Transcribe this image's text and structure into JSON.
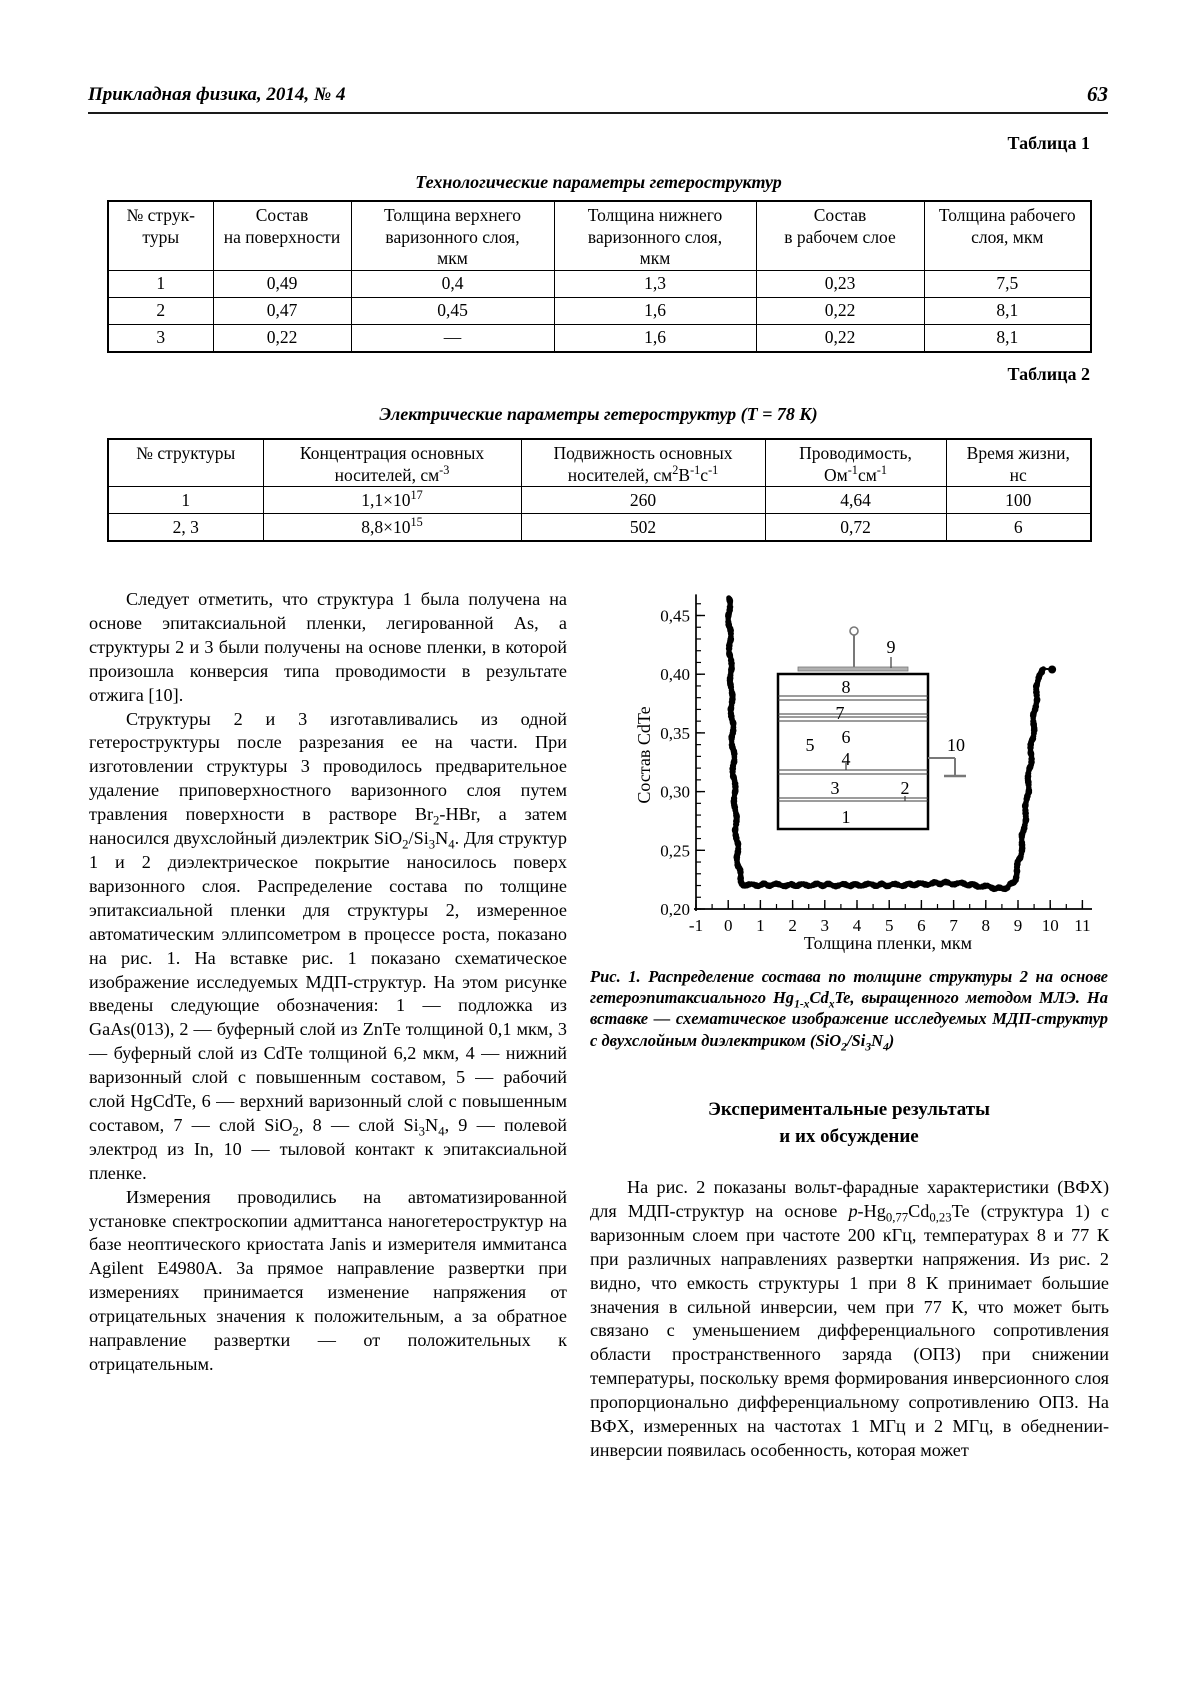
{
  "page": {
    "journal": "Прикладная физика, 2014, № 4",
    "page_number": "63"
  },
  "table1": {
    "label": "Таблица 1",
    "title": "Технологические параметры гетероструктур",
    "headers": [
      "№ струк-\nтуры",
      "Состав\nна поверхности",
      "Толщина верхнего\nваризонного слоя,\nмкм",
      "Толщина нижнего\nваризонного слоя,\nмкм",
      "Состав\nв рабочем слое",
      "Толщина рабочего\nслоя, мкм"
    ],
    "rows": [
      [
        "1",
        "0,49",
        "0,4",
        "1,3",
        "0,23",
        "7,5"
      ],
      [
        "2",
        "0,47",
        "0,45",
        "1,6",
        "0,22",
        "8,1"
      ],
      [
        "3",
        "0,22",
        "—",
        "1,6",
        "0,22",
        "8,1"
      ]
    ]
  },
  "table2": {
    "label": "Таблица 2",
    "title": "Электрические параметры гетероструктур (Т = 78 К)",
    "headers": [
      "№ структуры",
      "Концентрация основных\nносителей, см^{-3}",
      "Подвижность основных\nносителей, см^{2}В^{-1}с^{-1}",
      "Проводимость,\nОм^{-1}см^{-1}",
      "Время жизни,\nнс"
    ],
    "rows": [
      [
        "1",
        "1,1×10^{17}",
        "260",
        "4,64",
        "100"
      ],
      [
        "2, 3",
        "8,8×10^{15}",
        "502",
        "0,72",
        "6"
      ]
    ]
  },
  "left_column": {
    "paragraphs": [
      "Следует отметить, что структура 1 была получена на основе эпитаксиальной пленки, легированной As, а структуры 2 и 3 были получены на основе пленки, в которой произошла конверсия типа проводимости в результате отжига [10].",
      "Структуры 2 и 3 изготавливались из одной гетероструктуры после разрезания ее на части. При изготовлении структуры 3 проводилось предварительное удаление приповерхностного варизонного слоя путем травления поверхности в растворе Br_{2}-HBr, а затем наносился двухслойный диэлектрик SiO_{2}/Si_{3}N_{4}. Для структур 1 и 2 диэлектрическое покрытие наносилось поверх варизонного слоя. Распределение состава по толщине эпитаксиальной пленки для структуры 2, измеренное автоматическим эллипсометром в процессе роста, показано на рис. 1. На вставке рис. 1 показано схематическое изображение исследуемых МДП-структур. На этом рисунке введены следующие обозначения: 1 — подложка из GaAs(013), 2 — буферный слой из ZnTe толщиной 0,1 мкм, 3 — буферный слой из CdTe толщиной 6,2 мкм, 4 — нижний варизонный слой с повышенным составом, 5 — рабочий слой HgCdTe, 6 — верхний варизонный слой с повышенным составом, 7 — слой SiO_{2}, 8 — слой Si_{3}N_{4}, 9 — полевой электрод из In, 10 — тыловой контакт к эпитаксиальной пленке.",
      "Измерения проводились на автоматизированной установке спектроскопии адмиттанса наногетероструктур на базе неоптического криостата Janis и измерителя иммитанса Agilent E4980A. За прямое направление развертки при измерениях принимается изменение напряжения от отрицательных значения к положительным, а за обратное направление развертки — от положительных к отрицательным."
    ]
  },
  "figure": {
    "caption": "Рис. 1. Распределение состава по толщине структуры 2 на основе гетероэпитаксиального Hg_{1-x}Cd_{x}Te, выращенного методом МЛЭ. На вставке — схематическое изображение исследуемых МДП-структур с двухслойным диэлектриком (SiO_{2}/Si_{3}N_{4})"
  },
  "section": {
    "heading_line1": "Экспериментальные результаты",
    "heading_line2": "и их обсуждение"
  },
  "right_column": {
    "paragraphs": [
      "На рис. 2 показаны вольт-фарадные характеристики (ВФХ) для МДП-структур на основе /{p}/-Hg_{0,77}Cd_{0,23}Te (структура 1) с варизонным слоем при частоте 200 кГц, температурах 8 и 77 К при различных направлениях развертки напряжения. Из рис. 2 видно, что емкость структуры 1 при 8 К принимает большие значения в сильной инверсии, чем при 77 К, что может быть связано с уменьшением дифференциального сопротивления области пространственного заряда (ОПЗ) при снижении температуры, поскольку время формирования инверсионного слоя пропорционально дифференциальному сопротивлению ОПЗ. На ВФХ, измеренных на частотах 1 МГц и 2 МГц, в обеднении-инверсии появилась особенность, которая может"
    ]
  },
  "chart_data": {
    "type": "scatter",
    "title": "",
    "xlabel": "Толщина пленки, мкм",
    "ylabel": "Состав CdTe",
    "xlim": [
      -1,
      11
    ],
    "ylim": [
      0.2,
      0.468
    ],
    "grid": false,
    "legend": "none",
    "xticks": {
      "values": [
        -1,
        0,
        1,
        2,
        3,
        4,
        5,
        6,
        7,
        8,
        9,
        10,
        11
      ],
      "labels": [
        "-1",
        "0",
        "1",
        "2",
        "3",
        "4",
        "5",
        "6",
        "7",
        "8",
        "9",
        "10",
        "11"
      ],
      "minor_step": 0.5
    },
    "yticks": {
      "values": [
        0.2,
        0.25,
        0.3,
        0.35,
        0.4,
        0.45
      ],
      "labels": [
        "0,20",
        "0,25",
        "0,30",
        "0,35",
        "0,40",
        "0,45"
      ],
      "minor_step": 0.01
    },
    "series": [
      {
        "name": "Состав CdTe по толщине пленки (структура 2, эллипсометрия)",
        "style": "dense-dots",
        "points": [
          [
            0.02,
            0.466
          ],
          [
            0.03,
            0.452
          ],
          [
            0.045,
            0.438
          ],
          [
            0.06,
            0.422
          ],
          [
            0.075,
            0.408
          ],
          [
            0.09,
            0.392
          ],
          [
            0.105,
            0.376
          ],
          [
            0.12,
            0.361
          ],
          [
            0.14,
            0.344
          ],
          [
            0.16,
            0.328
          ],
          [
            0.18,
            0.312
          ],
          [
            0.2,
            0.298
          ],
          [
            0.22,
            0.284
          ],
          [
            0.245,
            0.269
          ],
          [
            0.27,
            0.256
          ],
          [
            0.3,
            0.243
          ],
          [
            0.33,
            0.234
          ],
          [
            0.37,
            0.2265
          ],
          [
            0.42,
            0.2225
          ],
          [
            0.5,
            0.2207
          ],
          [
            0.65,
            0.2203
          ],
          [
            1.2,
            0.2208
          ],
          [
            2.0,
            0.2202
          ],
          [
            2.8,
            0.2207
          ],
          [
            3.6,
            0.2203
          ],
          [
            4.4,
            0.2207
          ],
          [
            5.2,
            0.2204
          ],
          [
            6.0,
            0.2212
          ],
          [
            6.6,
            0.2222
          ],
          [
            7.1,
            0.2218
          ],
          [
            7.6,
            0.2205
          ],
          [
            8.1,
            0.2186
          ],
          [
            8.45,
            0.2172
          ],
          [
            8.7,
            0.2185
          ],
          [
            8.85,
            0.2225
          ],
          [
            8.95,
            0.2302
          ],
          [
            9.05,
            0.2425
          ],
          [
            9.15,
            0.2605
          ],
          [
            9.25,
            0.2852
          ],
          [
            9.35,
            0.3155
          ],
          [
            9.45,
            0.3462
          ],
          [
            9.53,
            0.3708
          ],
          [
            9.6,
            0.3895
          ],
          [
            9.66,
            0.3998
          ],
          [
            9.72,
            0.4042
          ],
          [
            9.82,
            0.4048
          ]
        ]
      },
      {
        "name": "изолированная точка",
        "style": "single-dot",
        "points": [
          [
            10.06,
            0.404
          ]
        ]
      }
    ],
    "tail_segment": {
      "from": [
        9.82,
        0.4046
      ],
      "to": [
        10.0,
        0.4042
      ]
    },
    "inset": {
      "labels": [
        "1",
        "2",
        "3",
        "4",
        "5",
        "6",
        "7",
        "8",
        "9",
        "10"
      ]
    }
  }
}
